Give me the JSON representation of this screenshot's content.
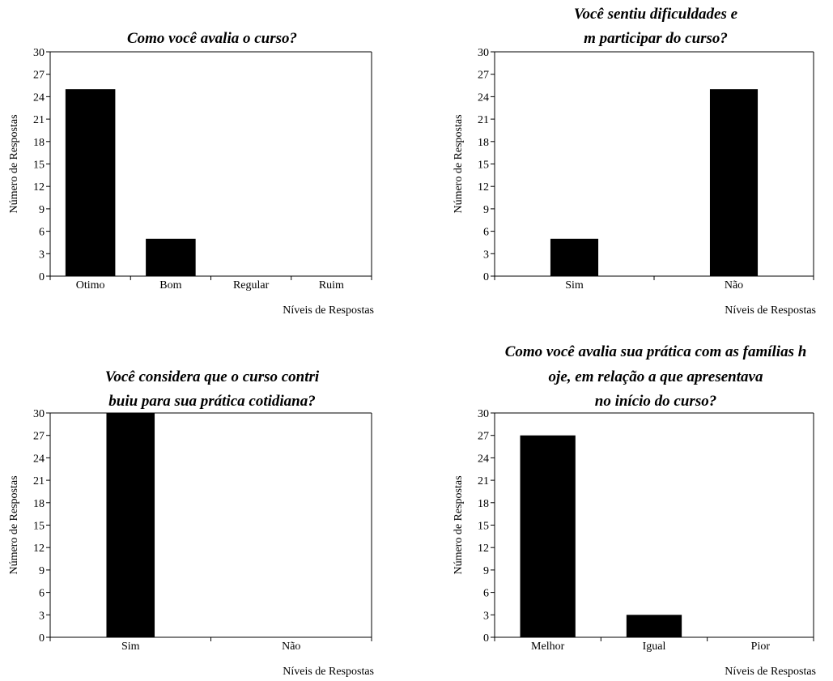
{
  "chart_data": [
    {
      "type": "bar",
      "title": "Como você avalia o curso?",
      "xlabel": "Níveis de Respostas",
      "ylabel": "Número de Respostas",
      "categories": [
        "Otimo",
        "Bom",
        "Regular",
        "Ruim"
      ],
      "values": [
        25,
        5,
        0,
        0
      ],
      "ylim": [
        0,
        30
      ],
      "yticks": [
        0,
        3,
        6,
        9,
        12,
        15,
        18,
        21,
        24,
        27,
        30
      ],
      "bar_color": "#000000",
      "grid": false
    },
    {
      "type": "bar",
      "title": "Você sentiu dificuldades em participar do curso?",
      "xlabel": "Níveis de Respostas",
      "ylabel": "Número de Respostas",
      "categories": [
        "Sim",
        "Não"
      ],
      "values": [
        5,
        25
      ],
      "ylim": [
        0,
        30
      ],
      "yticks": [
        0,
        3,
        6,
        9,
        12,
        15,
        18,
        21,
        24,
        27,
        30
      ],
      "bar_color": "#000000",
      "grid": false
    },
    {
      "type": "bar",
      "title": "Você considera que o curso contribuiu para sua prática cotidiana?",
      "xlabel": "Níveis de Respostas",
      "ylabel": "Número de Respostas",
      "categories": [
        "Sim",
        "Não"
      ],
      "values": [
        30,
        0
      ],
      "ylim": [
        0,
        30
      ],
      "yticks": [
        0,
        3,
        6,
        9,
        12,
        15,
        18,
        21,
        24,
        27,
        30
      ],
      "bar_color": "#000000",
      "grid": false
    },
    {
      "type": "bar",
      "title": "Como você avalia sua prática com as famílias hoje, em relação a que apresentava no início do curso?",
      "xlabel": "Níveis de Respostas",
      "ylabel": "Número de Respostas",
      "categories": [
        "Melhor",
        "Igual",
        "Pior"
      ],
      "values": [
        27,
        3,
        0
      ],
      "ylim": [
        0,
        30
      ],
      "yticks": [
        0,
        3,
        6,
        9,
        12,
        15,
        18,
        21,
        24,
        27,
        30
      ],
      "bar_color": "#000000",
      "grid": false
    }
  ]
}
